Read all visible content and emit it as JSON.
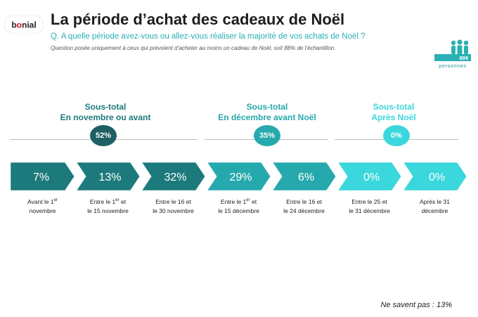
{
  "logo": {
    "text": "bonial"
  },
  "header": {
    "title": "La période d’achat des cadeaux de Noël",
    "question": "Q. A quelle période avez-vous ou allez-vous réaliser la majorité de vos achats de Noël ?",
    "note": "Question posée uniquement à ceux qui prévoient d’acheter au moins un cadeau de Noël, soit 88% de l’échantillon."
  },
  "sample": {
    "count": "899",
    "label": "personnes",
    "icon": "people-icon"
  },
  "colors": {
    "dark": "#1d7a7c",
    "mid": "#26a9ad",
    "light": "#3ad7dd",
    "line": "#bdbdbd"
  },
  "subtotals": [
    {
      "line1": "Sous-total",
      "line2": "En novembre ou avant",
      "value": "52%"
    },
    {
      "line1": "Sous-total",
      "line2": "En décembre avant Noël",
      "value": "35%"
    },
    {
      "line1": "Sous-total",
      "line2": "Après Noël",
      "value": "0%"
    }
  ],
  "chart_data": {
    "type": "bar",
    "title": "La période d’achat des cadeaux de Noël",
    "categories": [
      "Avant le 1er novembre",
      "Entre le 1er et le 15 novembre",
      "Entre le 16 et le 30 novembre",
      "Entre le 1er et le 15 décembre",
      "Entre le 16 et le 24 décembre",
      "Entre le 25 et le 31 décembre",
      "Après le 31 décembre"
    ],
    "values": [
      7,
      13,
      32,
      29,
      6,
      0,
      0
    ],
    "value_labels": [
      "7%",
      "13%",
      "32%",
      "29%",
      "6%",
      "0%",
      "0%"
    ],
    "label_lines": [
      [
        {
          "t": "Avant le 1",
          "s": "er"
        },
        {
          "t": "novembre"
        }
      ],
      [
        {
          "t": "Entre le 1",
          "s": "er",
          "a": " et"
        },
        {
          "t": "le 15 novembre"
        }
      ],
      [
        {
          "t": "Entre le 16 et"
        },
        {
          "t": "le 30 novembre"
        }
      ],
      [
        {
          "t": "Entre le 1",
          "s": "er",
          "a": " et"
        },
        {
          "t": "le 15 décembre"
        }
      ],
      [
        {
          "t": "Entre le 16 et"
        },
        {
          "t": "le 24 décembre"
        }
      ],
      [
        {
          "t": "Entre le 25 et"
        },
        {
          "t": "le 31 décembre"
        }
      ],
      [
        {
          "t": "Après le 31"
        },
        {
          "t": "décembre"
        }
      ]
    ],
    "groups": [
      0,
      0,
      0,
      1,
      1,
      2,
      2
    ]
  },
  "footnote": "Ne savent pas : 13%"
}
